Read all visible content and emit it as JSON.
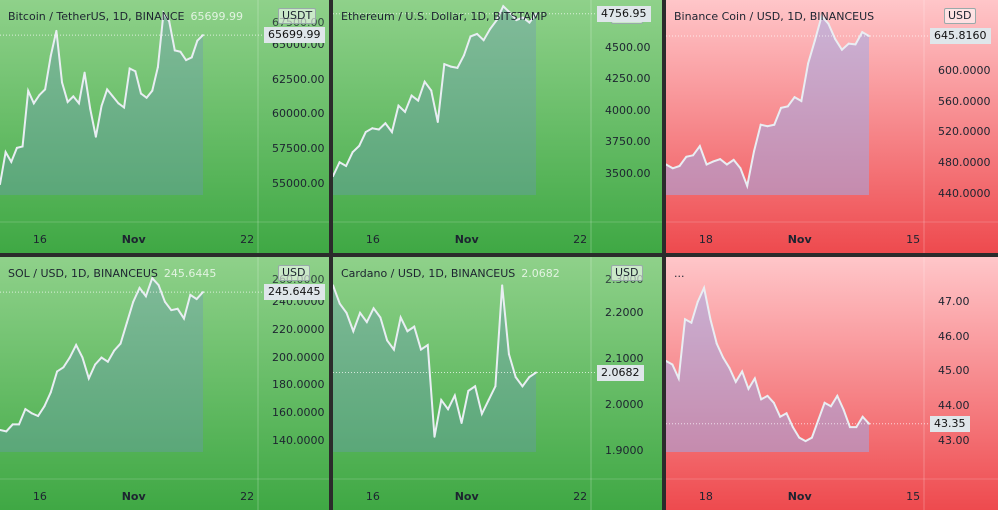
{
  "colors": {
    "green_top": "#8fd18a",
    "green_bottom": "#3fa844",
    "red_top": "#ffc6c9",
    "red_bottom": "#ee4a4e",
    "line": "#e9eef3",
    "frame": "#2b2b2b"
  },
  "chart_data": [
    {
      "type": "area",
      "title": "Bitcoin / TetherUS, 1D, BINANCE",
      "last_price_label": "65699.99",
      "currency": "USDT",
      "price_box": "65699.99",
      "theme": "green",
      "ylim": [
        53500,
        67500
      ],
      "yticks": [
        "55000.00",
        "57500.00",
        "60000.00",
        "62500.00",
        "65000.00"
      ],
      "ytick_values": [
        55000,
        57500,
        60000,
        62500,
        65000
      ],
      "top_clipped_tick": "67500.00",
      "xticks": [
        "16",
        "Nov",
        "22"
      ],
      "values": [
        55000,
        57300,
        56600,
        57600,
        57700,
        61700,
        60800,
        61400,
        61800,
        64200,
        66000,
        62300,
        60900,
        61300,
        60800,
        63000,
        60400,
        58400,
        60600,
        61800,
        61300,
        60800,
        60500,
        63300,
        63100,
        61500,
        61200,
        61700,
        63400,
        67300,
        66700,
        64600,
        64500,
        63900,
        64100,
        65300,
        65700
      ]
    },
    {
      "type": "area",
      "title": "Ethereum / U.S. Dollar, 1D, BITSTAMP",
      "last_price_label": "",
      "currency": "USD",
      "price_box": "4756.95",
      "theme": "green",
      "ylim": [
        3250,
        4800
      ],
      "yticks": [
        "3500.00",
        "3750.00",
        "4000.00",
        "4250.00",
        "4500.00"
      ],
      "ytick_values": [
        3500,
        3750,
        4000,
        4250,
        4500
      ],
      "top_clipped_tick": "",
      "xticks": [
        "16",
        "Nov",
        "22"
      ],
      "values": [
        3480,
        3590,
        3560,
        3670,
        3720,
        3830,
        3860,
        3850,
        3900,
        3830,
        4040,
        3990,
        4120,
        4080,
        4230,
        4160,
        3910,
        4370,
        4350,
        4340,
        4440,
        4590,
        4610,
        4560,
        4650,
        4720,
        4830,
        4780,
        4720,
        4740,
        4700,
        4770
      ]
    },
    {
      "type": "area",
      "title": "Binance Coin / USD, 1D, BINANCEUS",
      "last_price_label": "",
      "currency": "USD",
      "price_box": "645.8160",
      "theme": "red",
      "ylim": [
        425,
        680
      ],
      "yticks": [
        "440.0000",
        "480.0000",
        "520.0000",
        "560.0000",
        "600.0000"
      ],
      "ytick_values": [
        440,
        480,
        520,
        560,
        600
      ],
      "top_clipped_tick": "",
      "xticks": [
        "18",
        "Nov",
        "15"
      ],
      "values": [
        478,
        473,
        476,
        488,
        490,
        502,
        478,
        482,
        485,
        478,
        484,
        473,
        450,
        495,
        530,
        528,
        530,
        552,
        554,
        566,
        561,
        610,
        640,
        672,
        662,
        642,
        628,
        636,
        635,
        651,
        646
      ]
    },
    {
      "type": "area",
      "title": "SOL / USD, 1D, BINANCEUS",
      "last_price_label": "245.6445",
      "currency": "USD",
      "price_box": "245.6445",
      "theme": "green",
      "ylim": [
        125,
        265
      ],
      "yticks": [
        "140.0000",
        "160.0000",
        "180.0000",
        "200.0000",
        "220.0000",
        "240.0000"
      ],
      "ytick_values": [
        140,
        160,
        180,
        200,
        220,
        240
      ],
      "top_clipped_tick": "260.0000",
      "xticks": [
        "16",
        "Nov",
        "22"
      ],
      "values": [
        148,
        147,
        152,
        152,
        163,
        160,
        158,
        165,
        175,
        190,
        193,
        200,
        209,
        200,
        185,
        195,
        200,
        197,
        205,
        210,
        225,
        240,
        250,
        244,
        257,
        252,
        240,
        234,
        235,
        228,
        245,
        242,
        247
      ]
    },
    {
      "type": "area",
      "title": "Cardano / USD, 1D, BINANCEUS",
      "last_price_label": "2.0682",
      "currency": "USD",
      "price_box": "2.0682",
      "theme": "green",
      "ylim": [
        1.875,
        2.3
      ],
      "yticks": [
        "1.9000",
        "2.0000",
        "2.1000",
        "2.2000"
      ],
      "ytick_values": [
        1.9,
        2.0,
        2.1,
        2.2
      ],
      "top_clipped_tick": "2.3000",
      "xticks": [
        "16",
        "Nov",
        "22"
      ],
      "values": [
        2.26,
        2.22,
        2.2,
        2.16,
        2.2,
        2.18,
        2.21,
        2.19,
        2.14,
        2.12,
        2.19,
        2.16,
        2.17,
        2.12,
        2.13,
        1.93,
        2.01,
        1.99,
        2.02,
        1.96,
        2.03,
        2.04,
        1.98,
        2.01,
        2.04,
        2.26,
        2.11,
        2.06,
        2.04,
        2.06,
        2.07
      ]
    },
    {
      "type": "area",
      "title": "...",
      "last_price_label": "",
      "currency": "",
      "price_box": "43.35",
      "theme": "red",
      "ylim": [
        42.4,
        48
      ],
      "yticks": [
        "43.00",
        "44.00",
        "45.00",
        "46.00",
        "47.00"
      ],
      "ytick_values": [
        43,
        44,
        45,
        46,
        47
      ],
      "top_clipped_tick": "",
      "xticks": [
        "18",
        "Nov",
        "15"
      ],
      "values": [
        45.3,
        45.2,
        44.8,
        46.5,
        46.4,
        47.0,
        47.4,
        46.5,
        45.8,
        45.4,
        45.1,
        44.7,
        45.0,
        44.5,
        44.8,
        44.2,
        44.3,
        44.1,
        43.7,
        43.8,
        43.4,
        43.1,
        43.0,
        43.1,
        43.6,
        44.1,
        44.0,
        44.3,
        43.9,
        43.4,
        43.4,
        43.7,
        43.5
      ]
    }
  ]
}
